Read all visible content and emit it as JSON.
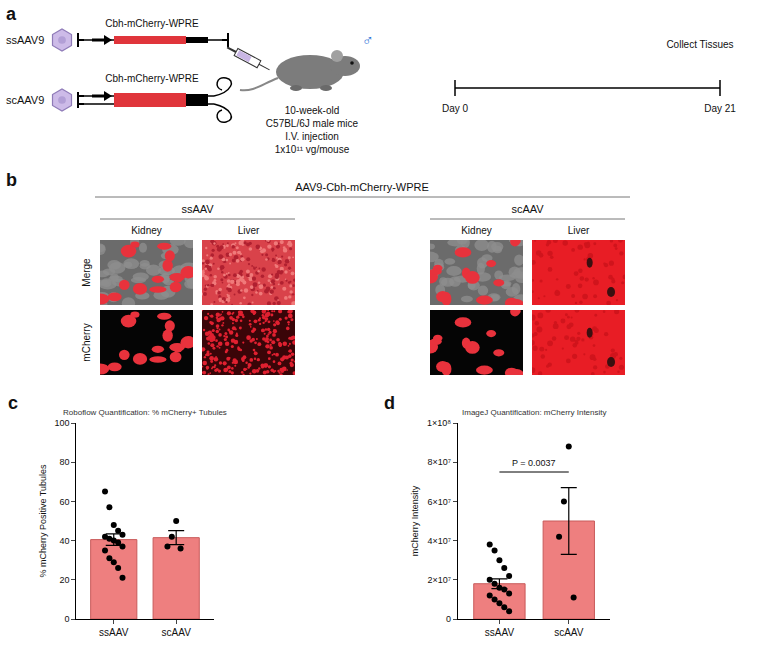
{
  "panel_a": {
    "letter": "a",
    "vectors": [
      {
        "name": "ssAAV9",
        "construct": "Cbh-mCherry-WPRE"
      },
      {
        "name": "scAAV9",
        "construct": "Cbh-mCherry-WPRE"
      }
    ],
    "sex": "♂",
    "mice": [
      "10-week-old",
      "C57BL/6J male mice",
      "I.V. injection",
      "1x10¹¹ vg/mouse"
    ],
    "timeline": {
      "start": "Day 0",
      "end": "Day 21",
      "event": "Collect Tissues"
    }
  },
  "panel_b": {
    "letter": "b",
    "title": "AAV9-Cbh-mCherry-WPRE",
    "groups": [
      {
        "name": "ssAAV",
        "columns": [
          "Kidney",
          "Liver"
        ]
      },
      {
        "name": "scAAV",
        "columns": [
          "Kidney",
          "Liver"
        ]
      }
    ],
    "rows": [
      "Merge",
      "mCherry"
    ]
  },
  "chart_data": [
    {
      "panel": "c",
      "type": "bar",
      "title": "Roboflow Quantification: % mCherry+ Tubules",
      "y_label": "% mCherry Positive Tubules",
      "categories": [
        "ssAAV",
        "scAAV"
      ],
      "values": [
        40.5,
        41.5
      ],
      "errors": [
        2.9,
        3.6
      ],
      "points": [
        [
          65,
          57,
          48,
          45,
          43,
          42,
          41,
          40,
          39,
          37,
          35,
          31,
          29,
          26,
          21
        ],
        [
          37,
          42,
          50,
          36
        ]
      ],
      "color": "#ee7f7f",
      "ylim": [
        0,
        100
      ],
      "yticks": [
        0,
        20,
        40,
        60,
        80,
        100
      ],
      "grid": false
    },
    {
      "panel": "d",
      "type": "bar",
      "title": "ImageJ Quantification: mCherry Intensity",
      "y_label": "mCherry Intensity",
      "categories": [
        "ssAAV",
        "scAAV"
      ],
      "values": [
        18000000,
        50000000
      ],
      "errors": [
        2500000,
        17000000
      ],
      "points": [
        [
          38000000,
          35000000,
          30000000,
          26000000,
          22000000,
          20000000,
          18000000,
          16000000,
          15000000,
          13000000,
          12000000,
          10000000,
          8000000,
          6000000,
          4000000
        ],
        [
          42000000,
          60000000,
          88000000,
          11000000
        ]
      ],
      "color": "#ee7f7f",
      "ylim": [
        0,
        100000000
      ],
      "yticks": [
        0,
        {
          "value": 20000000,
          "label": "2×10⁷"
        },
        {
          "value": 40000000,
          "label": "4×10⁷"
        },
        {
          "value": 60000000,
          "label": "6×10⁷"
        },
        {
          "value": 80000000,
          "label": "8×10⁷"
        },
        {
          "value": 100000000,
          "label": "1×10⁸"
        }
      ],
      "grid": false,
      "annotations": [
        {
          "text": "P = 0.0037",
          "from": "ssAAV",
          "to": "scAAV"
        }
      ]
    }
  ]
}
